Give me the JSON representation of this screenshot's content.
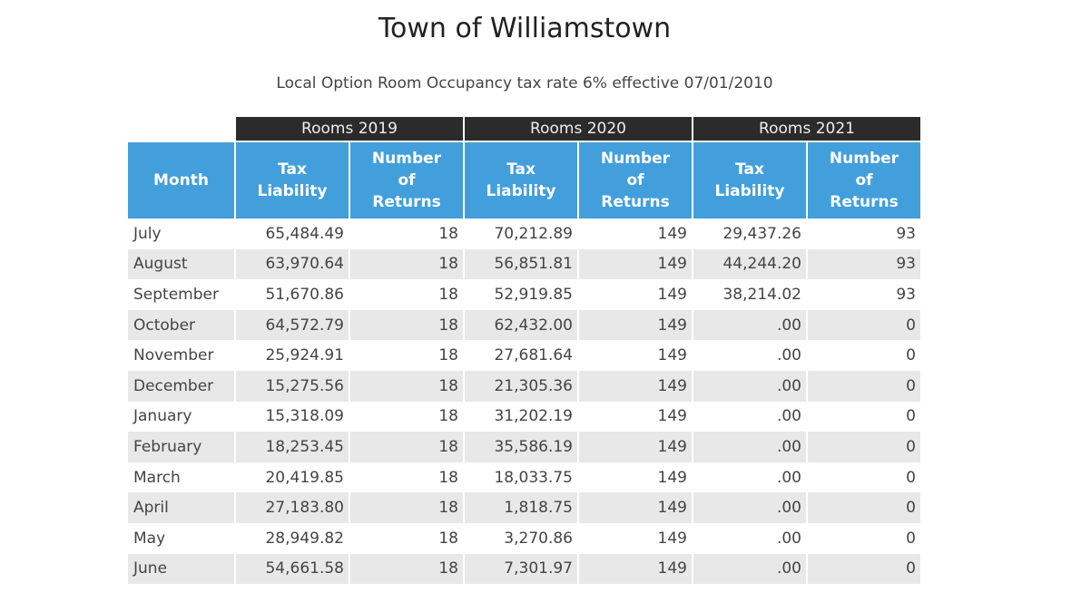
{
  "title": "Town of Williamstown",
  "subtitle": "Local Option Room Occupancy tax rate 6% effective 07/01/2010",
  "table": {
    "groups": [
      "Rooms 2019",
      "Rooms 2020",
      "Rooms 2021"
    ],
    "month_header": "Month",
    "tax_header": "Tax Liability",
    "returns_header": "Number of Returns",
    "rows": [
      [
        "July",
        "65,484.49",
        "18",
        "70,212.89",
        "149",
        "29,437.26",
        "93"
      ],
      [
        "August",
        "63,970.64",
        "18",
        "56,851.81",
        "149",
        "44,244.20",
        "93"
      ],
      [
        "September",
        "51,670.86",
        "18",
        "52,919.85",
        "149",
        "38,214.02",
        "93"
      ],
      [
        "October",
        "64,572.79",
        "18",
        "62,432.00",
        "149",
        ".00",
        "0"
      ],
      [
        "November",
        "25,924.91",
        "18",
        "27,681.64",
        "149",
        ".00",
        "0"
      ],
      [
        "December",
        "15,275.56",
        "18",
        "21,305.36",
        "149",
        ".00",
        "0"
      ],
      [
        "January",
        "15,318.09",
        "18",
        "31,202.19",
        "149",
        ".00",
        "0"
      ],
      [
        "February",
        "18,253.45",
        "18",
        "35,586.19",
        "149",
        ".00",
        "0"
      ],
      [
        "March",
        "20,419.85",
        "18",
        "18,033.75",
        "149",
        ".00",
        "0"
      ],
      [
        "April",
        "27,183.80",
        "18",
        "1,818.75",
        "149",
        ".00",
        "0"
      ],
      [
        "May",
        "28,949.82",
        "18",
        "3,270.86",
        "149",
        ".00",
        "0"
      ],
      [
        "June",
        "54,661.58",
        "18",
        "7,301.97",
        "149",
        ".00",
        "0"
      ]
    ]
  }
}
